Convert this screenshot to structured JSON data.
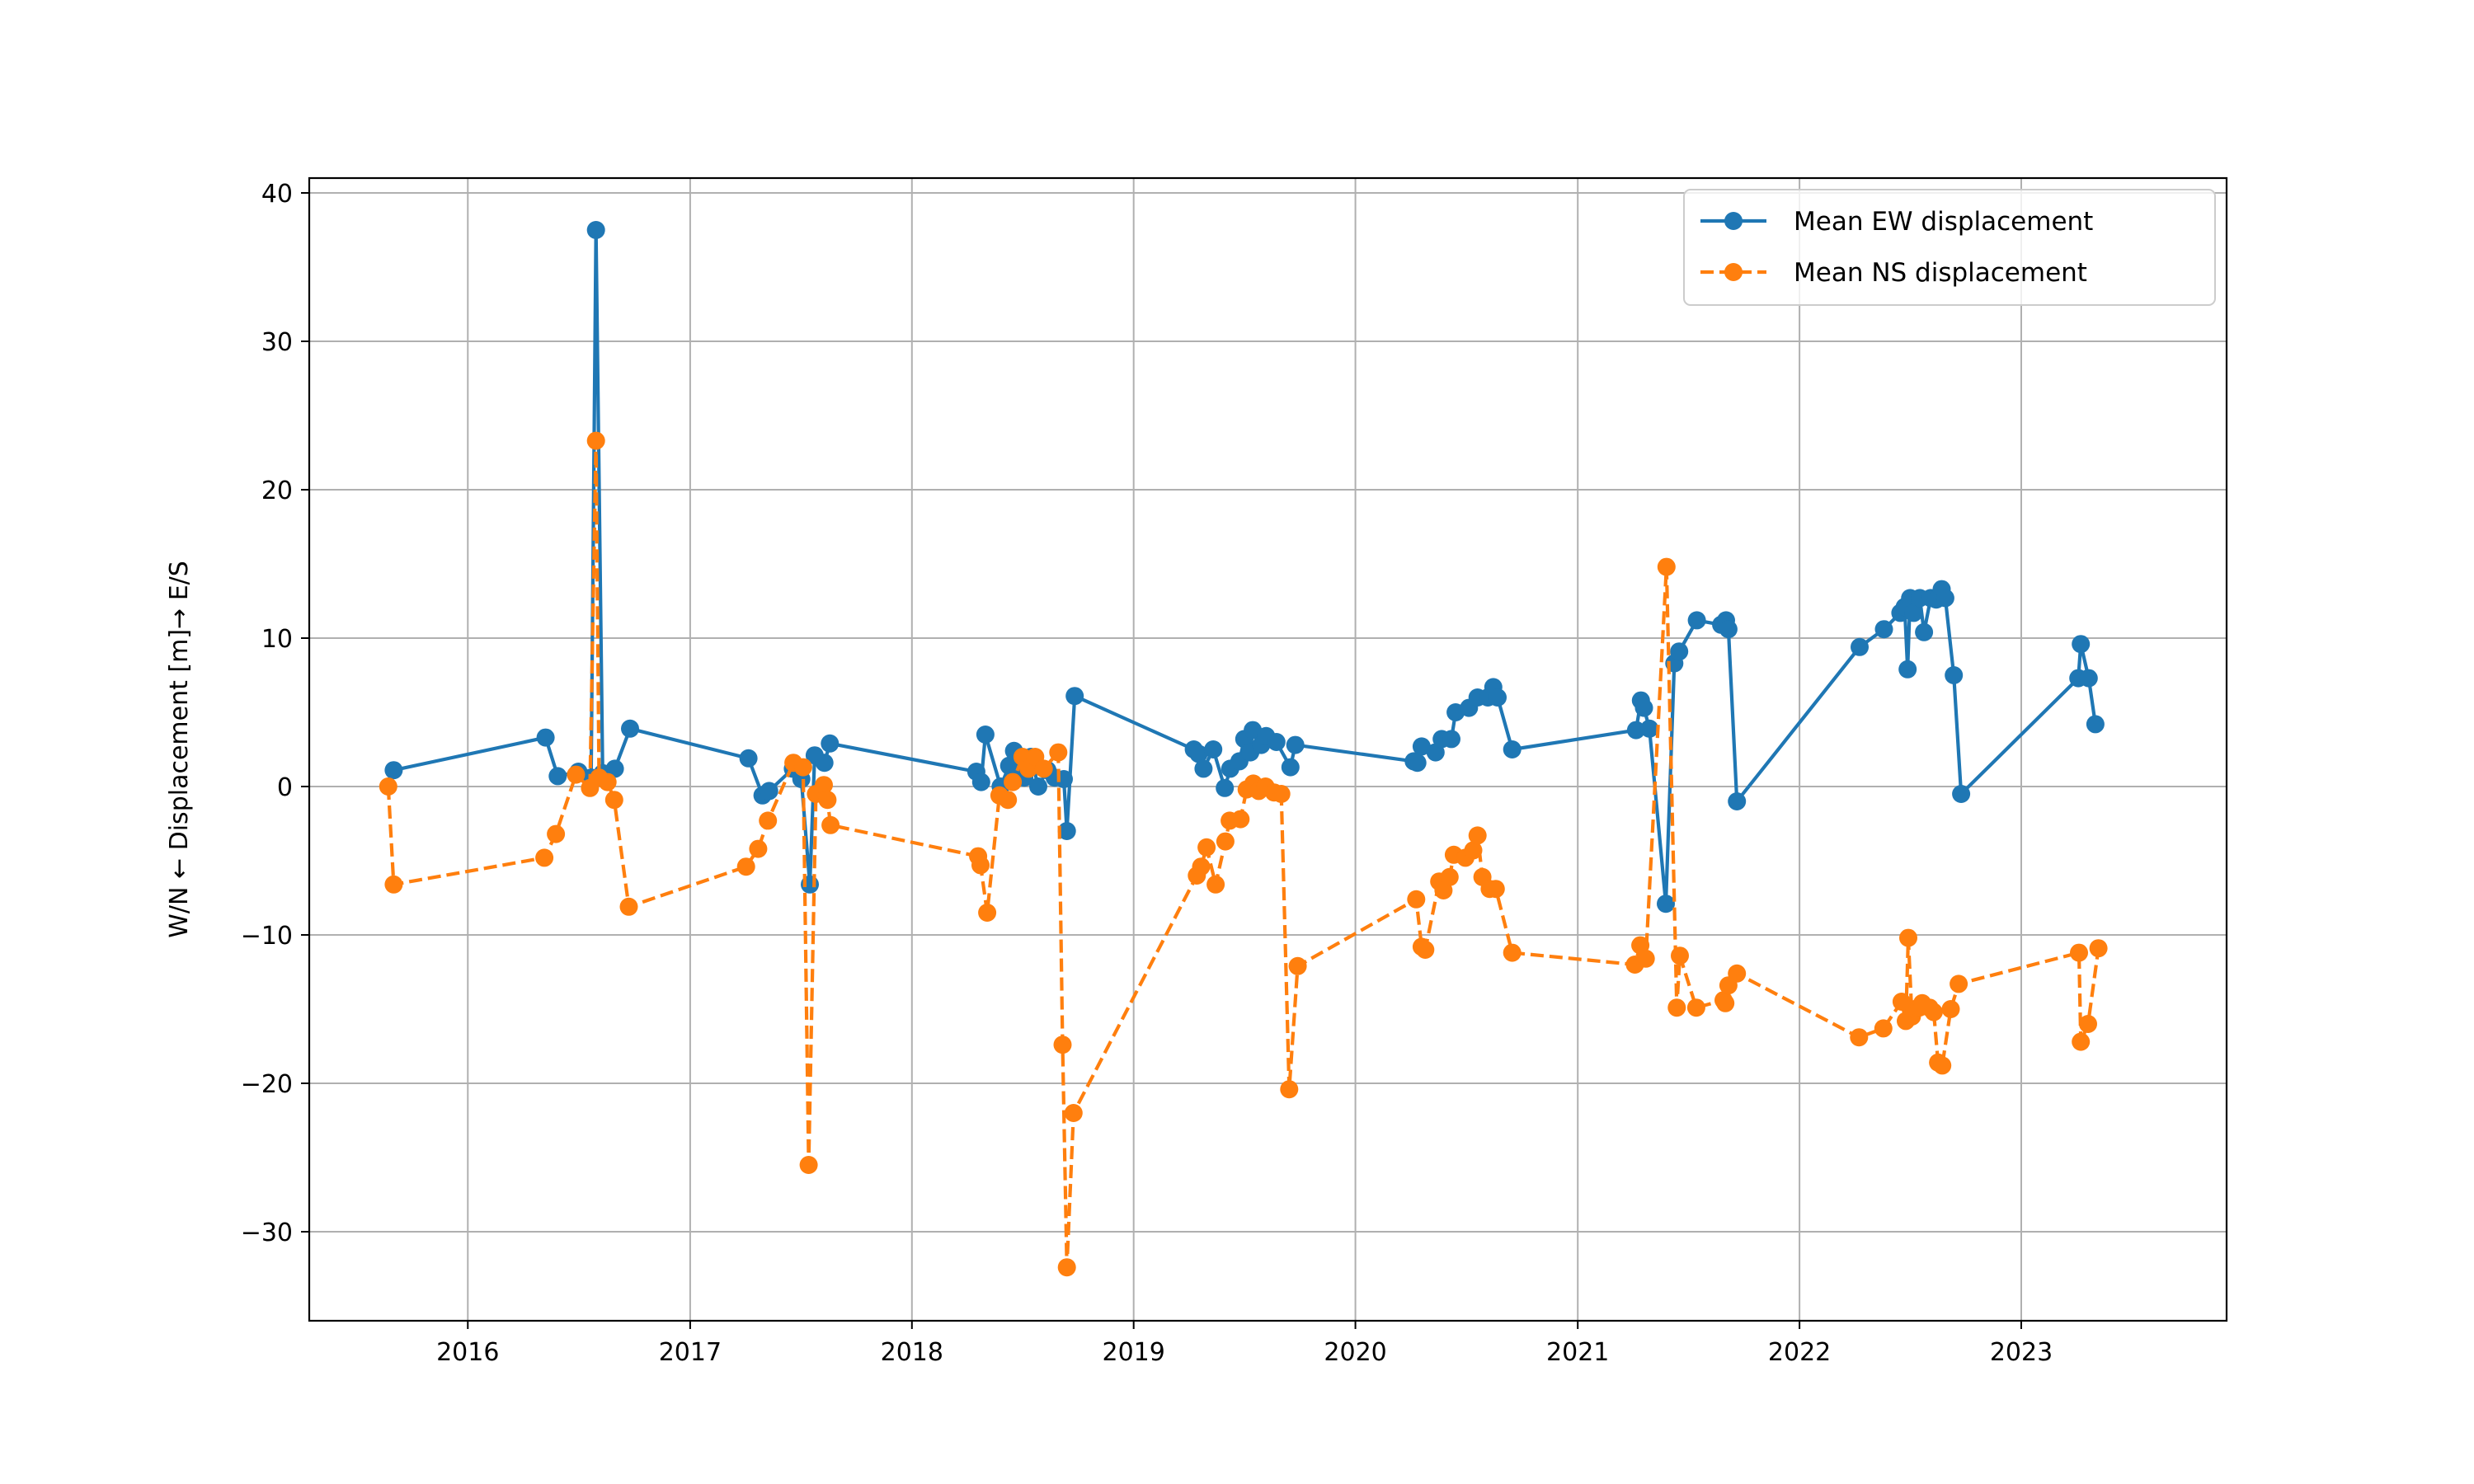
{
  "chart_data": {
    "type": "line",
    "title": "",
    "xlabel": "",
    "ylabel": "W/N ← Displacement [m]→ E/S",
    "xlim": [
      "2015-04-15",
      "2023-12-05"
    ],
    "ylim": [
      -36,
      41
    ],
    "x_ticks": [
      "2016",
      "2017",
      "2018",
      "2019",
      "2020",
      "2021",
      "2022",
      "2023"
    ],
    "y_ticks": [
      "−30",
      "−20",
      "−10",
      "0",
      "10",
      "20",
      "30",
      "40"
    ],
    "grid": true,
    "legend_position": "top-right",
    "series": [
      {
        "name": "Mean EW displacement",
        "color": "#1f77b4",
        "linestyle": "solid",
        "marker": "circle",
        "points": [
          [
            "2015-09-01",
            1.1
          ],
          [
            "2016-05-08",
            3.3
          ],
          [
            "2016-05-28",
            0.7
          ],
          [
            "2016-07-01",
            1.0
          ],
          [
            "2016-07-22",
            0.6
          ],
          [
            "2016-07-30",
            37.5
          ],
          [
            "2016-08-10",
            0.9
          ],
          [
            "2016-08-30",
            1.2
          ],
          [
            "2016-09-24",
            3.9
          ],
          [
            "2017-04-07",
            1.9
          ],
          [
            "2017-04-30",
            -0.6
          ],
          [
            "2017-05-11",
            -0.3
          ],
          [
            "2017-06-19",
            1.2
          ],
          [
            "2017-07-03",
            0.5
          ],
          [
            "2017-07-17",
            -6.6
          ],
          [
            "2017-07-25",
            2.1
          ],
          [
            "2017-08-10",
            1.6
          ],
          [
            "2017-08-19",
            2.9
          ],
          [
            "2018-04-17",
            1.0
          ],
          [
            "2018-04-25",
            0.3
          ],
          [
            "2018-05-02",
            3.5
          ],
          [
            "2018-05-27",
            0.0
          ],
          [
            "2018-06-10",
            1.4
          ],
          [
            "2018-06-18",
            2.4
          ],
          [
            "2018-06-26",
            1.0
          ],
          [
            "2018-07-05",
            0.6
          ],
          [
            "2018-07-16",
            2.0
          ],
          [
            "2018-07-28",
            0.0
          ],
          [
            "2018-08-12",
            1.1
          ],
          [
            "2018-08-24",
            0.6
          ],
          [
            "2018-09-08",
            0.5
          ],
          [
            "2018-09-13",
            -3.0
          ],
          [
            "2018-09-26",
            6.1
          ],
          [
            "2019-04-10",
            2.5
          ],
          [
            "2019-04-18",
            2.2
          ],
          [
            "2019-04-26",
            1.2
          ],
          [
            "2019-05-12",
            2.5
          ],
          [
            "2019-05-31",
            -0.1
          ],
          [
            "2019-06-09",
            1.2
          ],
          [
            "2019-06-24",
            1.7
          ],
          [
            "2019-07-02",
            3.2
          ],
          [
            "2019-07-12",
            2.3
          ],
          [
            "2019-07-16",
            3.8
          ],
          [
            "2019-07-30",
            2.8
          ],
          [
            "2019-08-07",
            3.4
          ],
          [
            "2019-08-24",
            3.0
          ],
          [
            "2019-09-16",
            1.3
          ],
          [
            "2019-09-24",
            2.8
          ],
          [
            "2020-04-06",
            1.7
          ],
          [
            "2020-04-12",
            1.6
          ],
          [
            "2020-04-19",
            2.7
          ],
          [
            "2020-05-12",
            2.3
          ],
          [
            "2020-05-22",
            3.2
          ],
          [
            "2020-06-07",
            3.2
          ],
          [
            "2020-06-14",
            5.0
          ],
          [
            "2020-07-06",
            5.3
          ],
          [
            "2020-07-20",
            6.0
          ],
          [
            "2020-08-06",
            6.0
          ],
          [
            "2020-08-15",
            6.7
          ],
          [
            "2020-08-22",
            6.0
          ],
          [
            "2020-09-15",
            2.5
          ],
          [
            "2021-04-07",
            3.8
          ],
          [
            "2021-04-15",
            5.8
          ],
          [
            "2021-04-20",
            5.3
          ],
          [
            "2021-04-29",
            3.9
          ],
          [
            "2021-05-26",
            -7.9
          ],
          [
            "2021-06-09",
            8.3
          ],
          [
            "2021-06-17",
            9.1
          ],
          [
            "2021-07-16",
            11.2
          ],
          [
            "2021-08-25",
            10.9
          ],
          [
            "2021-09-02",
            11.2
          ],
          [
            "2021-09-06",
            10.6
          ],
          [
            "2021-09-20",
            -1.0
          ],
          [
            "2022-04-10",
            9.4
          ],
          [
            "2022-05-20",
            10.6
          ],
          [
            "2022-06-16",
            11.7
          ],
          [
            "2022-06-23",
            12.1
          ],
          [
            "2022-06-28",
            7.9
          ],
          [
            "2022-07-02",
            12.7
          ],
          [
            "2022-07-08",
            11.7
          ],
          [
            "2022-07-18",
            12.7
          ],
          [
            "2022-07-25",
            10.4
          ],
          [
            "2022-08-05",
            12.7
          ],
          [
            "2022-08-14",
            12.6
          ],
          [
            "2022-08-23",
            13.3
          ],
          [
            "2022-08-29",
            12.7
          ],
          [
            "2022-09-12",
            7.5
          ],
          [
            "2022-09-24",
            -0.5
          ],
          [
            "2023-04-05",
            7.3
          ],
          [
            "2023-04-09",
            9.6
          ],
          [
            "2023-04-22",
            7.3
          ],
          [
            "2023-05-03",
            4.2
          ]
        ]
      },
      {
        "name": "Mean NS displacement",
        "color": "#ff7f0e",
        "linestyle": "dashed",
        "marker": "circle",
        "points": [
          [
            "2015-08-23",
            0.0
          ],
          [
            "2015-09-01",
            -6.6
          ],
          [
            "2016-05-06",
            -4.8
          ],
          [
            "2016-05-25",
            -3.2
          ],
          [
            "2016-06-27",
            0.8
          ],
          [
            "2016-07-20",
            -0.1
          ],
          [
            "2016-07-30",
            23.3
          ],
          [
            "2016-08-04",
            0.6
          ],
          [
            "2016-08-18",
            0.3
          ],
          [
            "2016-08-29",
            -0.9
          ],
          [
            "2016-09-22",
            -8.1
          ],
          [
            "2017-04-03",
            -5.4
          ],
          [
            "2017-04-23",
            -4.2
          ],
          [
            "2017-05-09",
            -2.3
          ],
          [
            "2017-06-20",
            1.6
          ],
          [
            "2017-07-06",
            1.3
          ],
          [
            "2017-07-15",
            -25.5
          ],
          [
            "2017-07-27",
            -0.5
          ],
          [
            "2017-08-09",
            0.1
          ],
          [
            "2017-08-15",
            -0.9
          ],
          [
            "2017-08-20",
            -2.6
          ],
          [
            "2018-04-20",
            -4.7
          ],
          [
            "2018-04-24",
            -5.3
          ],
          [
            "2018-05-05",
            -8.5
          ],
          [
            "2018-05-25",
            -0.6
          ],
          [
            "2018-06-08",
            -0.9
          ],
          [
            "2018-06-16",
            0.3
          ],
          [
            "2018-07-02",
            2.0
          ],
          [
            "2018-07-12",
            1.2
          ],
          [
            "2018-07-23",
            2.0
          ],
          [
            "2018-08-06",
            1.2
          ],
          [
            "2018-08-30",
            2.3
          ],
          [
            "2018-09-06",
            -17.4
          ],
          [
            "2018-09-13",
            -32.4
          ],
          [
            "2018-09-24",
            -22.0
          ],
          [
            "2019-04-15",
            -6.0
          ],
          [
            "2019-04-22",
            -5.4
          ],
          [
            "2019-05-01",
            -4.1
          ],
          [
            "2019-05-16",
            -6.6
          ],
          [
            "2019-06-01",
            -3.7
          ],
          [
            "2019-06-08",
            -2.3
          ],
          [
            "2019-06-26",
            -2.2
          ],
          [
            "2019-07-06",
            -0.2
          ],
          [
            "2019-07-17",
            0.2
          ],
          [
            "2019-07-26",
            -0.3
          ],
          [
            "2019-08-06",
            0.0
          ],
          [
            "2019-08-20",
            -0.4
          ],
          [
            "2019-09-01",
            -0.5
          ],
          [
            "2019-09-14",
            -20.4
          ],
          [
            "2019-09-28",
            -12.1
          ],
          [
            "2020-04-10",
            -7.6
          ],
          [
            "2020-04-19",
            -10.8
          ],
          [
            "2020-04-25",
            -11.0
          ],
          [
            "2020-05-18",
            -6.4
          ],
          [
            "2020-05-25",
            -7.0
          ],
          [
            "2020-06-04",
            -6.1
          ],
          [
            "2020-06-11",
            -4.6
          ],
          [
            "2020-06-30",
            -4.8
          ],
          [
            "2020-07-13",
            -4.3
          ],
          [
            "2020-07-20",
            -3.3
          ],
          [
            "2020-07-28",
            -6.1
          ],
          [
            "2020-08-09",
            -6.9
          ],
          [
            "2020-08-19",
            -6.9
          ],
          [
            "2020-09-15",
            -11.2
          ],
          [
            "2021-04-05",
            -12.0
          ],
          [
            "2021-04-14",
            -10.7
          ],
          [
            "2021-04-23",
            -11.6
          ],
          [
            "2021-05-27",
            14.8
          ],
          [
            "2021-06-13",
            -14.9
          ],
          [
            "2021-06-18",
            -11.4
          ],
          [
            "2021-07-15",
            -14.9
          ],
          [
            "2021-08-29",
            -14.4
          ],
          [
            "2021-09-01",
            -14.6
          ],
          [
            "2021-09-06",
            -13.4
          ],
          [
            "2021-09-20",
            -12.6
          ],
          [
            "2022-04-09",
            -16.9
          ],
          [
            "2022-05-19",
            -16.3
          ],
          [
            "2022-06-18",
            -14.5
          ],
          [
            "2022-06-25",
            -15.8
          ],
          [
            "2022-06-29",
            -10.2
          ],
          [
            "2022-07-05",
            -15.5
          ],
          [
            "2022-07-09",
            -15.0
          ],
          [
            "2022-07-17",
            -14.9
          ],
          [
            "2022-07-22",
            -14.6
          ],
          [
            "2022-08-03",
            -14.9
          ],
          [
            "2022-08-10",
            -15.2
          ],
          [
            "2022-08-17",
            -18.6
          ],
          [
            "2022-08-24",
            -18.8
          ],
          [
            "2022-09-07",
            -15.0
          ],
          [
            "2022-09-20",
            -13.3
          ],
          [
            "2023-04-06",
            -11.2
          ],
          [
            "2023-04-09",
            -17.2
          ],
          [
            "2023-04-21",
            -16.0
          ],
          [
            "2023-05-08",
            -10.9
          ]
        ]
      }
    ]
  }
}
